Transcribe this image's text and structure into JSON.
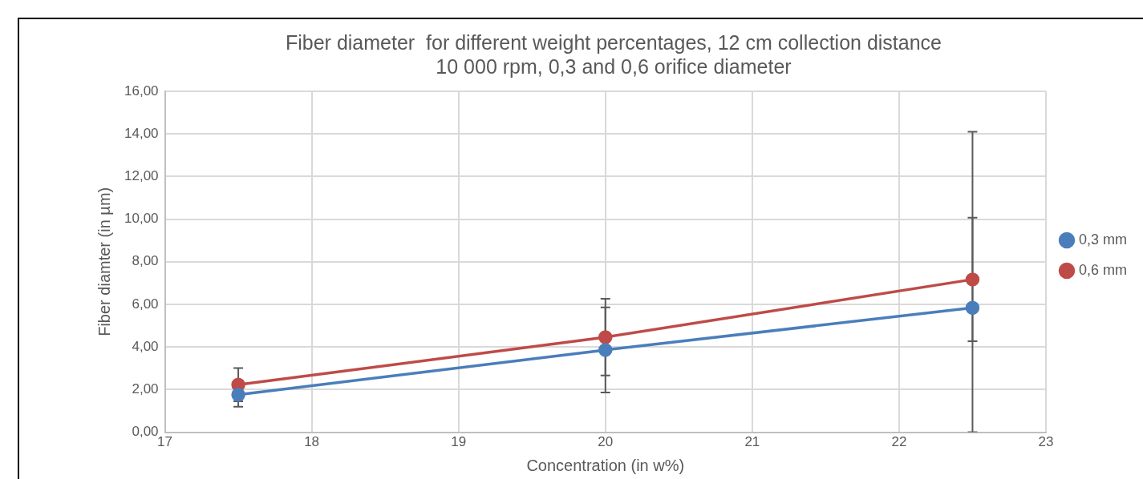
{
  "chart_data": {
    "type": "line",
    "title": [
      "Fiber diameter  for different weight percentages, 12 cm collection distance",
      "10 000 rpm, 0,3 and 0,6 orifice diameter"
    ],
    "xlabel": "Concentration (in w%)",
    "ylabel": "Fiber diamter (in µm)",
    "x": [
      17.5,
      20,
      22.5
    ],
    "series": [
      {
        "name": "0,3 mm",
        "color": "#4a7ebb",
        "values": [
          1.76,
          3.86,
          5.84
        ],
        "errors": [
          0.56,
          2.0,
          [
            0,
            14.1
          ]
        ]
      },
      {
        "name": "0,6 mm",
        "color": "#be4b48",
        "values": [
          2.23,
          4.46,
          7.17
        ],
        "errors": [
          0.78,
          1.8,
          2.9
        ]
      }
    ],
    "xlim": [
      17,
      23
    ],
    "xticks": [
      17,
      18,
      19,
      20,
      21,
      22,
      23
    ],
    "ylim": [
      0,
      16
    ],
    "yticks": [
      {
        "value": 0,
        "label": "0,00"
      },
      {
        "value": 2,
        "label": "2,00"
      },
      {
        "value": 4,
        "label": "4,00"
      },
      {
        "value": 6,
        "label": "6,00"
      },
      {
        "value": 8,
        "label": "8,00"
      },
      {
        "value": 10,
        "label": "10,00"
      },
      {
        "value": 12,
        "label": "12,00"
      },
      {
        "value": 14,
        "label": "14,00"
      },
      {
        "value": 16,
        "label": "16,00"
      }
    ],
    "grid": true,
    "legend": "right",
    "marker": "circle",
    "line_style": "solid"
  }
}
